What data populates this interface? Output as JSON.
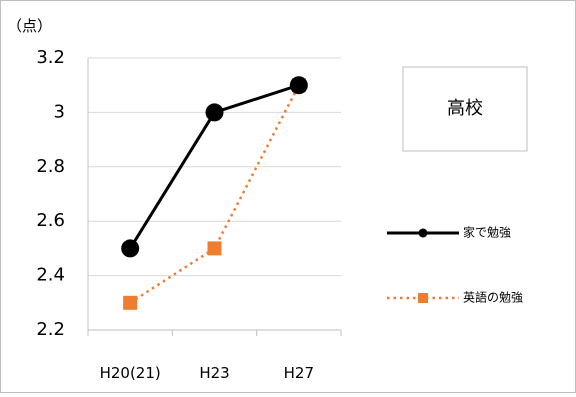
{
  "chart_data": {
    "type": "line",
    "title": "高校",
    "unit_label": "（点）",
    "categories": [
      "H20(21)",
      "H23",
      "H27"
    ],
    "y_ticks": [
      "3.2",
      "3",
      "2.8",
      "2.6",
      "2.4",
      "2.2"
    ],
    "ylim": [
      2.2,
      3.2
    ],
    "grid": "horizontal",
    "legend_position": "right",
    "series": [
      {
        "name": "家で勉強",
        "values": [
          2.5,
          3.0,
          3.1
        ],
        "color": "#000000",
        "line_style": "solid",
        "marker": "circle"
      },
      {
        "name": "英語の勉強",
        "values": [
          2.3,
          2.5,
          3.1
        ],
        "color": "#ed7d31",
        "line_style": "dotted",
        "marker": "square"
      }
    ]
  }
}
